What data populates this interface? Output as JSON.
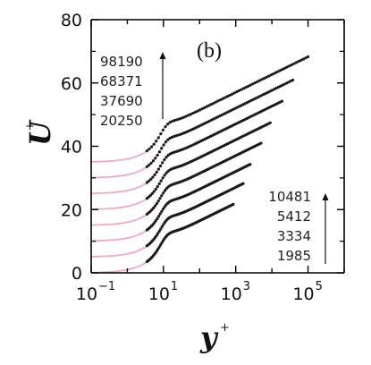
{
  "chart_data": {
    "type": "line",
    "panel_label": "(b)",
    "xlabel": "y",
    "xlabel_sup": "+",
    "ylabel": "U",
    "ylabel_sup": "+",
    "x_scale": "log",
    "xlim": [
      0.1,
      1000000
    ],
    "ylim": [
      0,
      80
    ],
    "x_ticks": [
      {
        "value": 0.1,
        "base": "10",
        "exp": "−1"
      },
      {
        "value": 10,
        "base": "10",
        "exp": "1"
      },
      {
        "value": 1000,
        "base": "10",
        "exp": "3"
      },
      {
        "value": 100000,
        "base": "10",
        "exp": "5"
      }
    ],
    "y_ticks": [
      0,
      20,
      40,
      60,
      80
    ],
    "annotations": {
      "top_list": [
        "98190",
        "68371",
        "37690",
        "20250"
      ],
      "bottom_list": [
        "10481",
        "5412",
        "3334",
        "1985"
      ]
    },
    "colors": {
      "dns_line": "#f4a6c6",
      "symbols": "#1a1a1a",
      "axis": "#000000"
    },
    "series": [
      {
        "label": "1985",
        "offset": 0,
        "x_end": 850
      },
      {
        "label": "3334",
        "offset": 5,
        "x_end": 1600
      },
      {
        "label": "5412",
        "offset": 10,
        "x_end": 2500
      },
      {
        "label": "10481",
        "offset": 15,
        "x_end": 5000
      },
      {
        "label": "20250",
        "offset": 20,
        "x_end": 9000
      },
      {
        "label": "37690",
        "offset": 25,
        "x_end": 19000
      },
      {
        "label": "68371",
        "offset": 30,
        "x_end": 38000
      },
      {
        "label": "98190",
        "offset": 35,
        "x_end": 100000
      }
    ]
  }
}
